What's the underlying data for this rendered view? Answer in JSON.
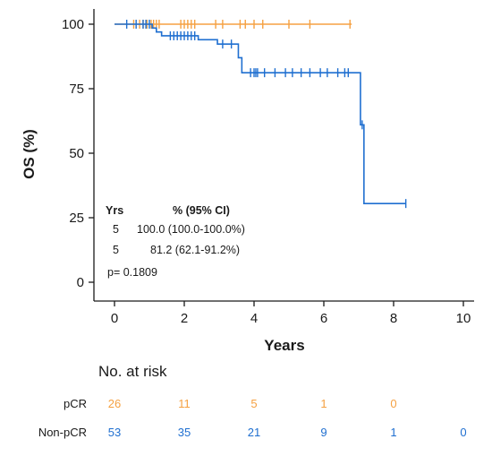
{
  "chart_data": {
    "type": "line",
    "subtype": "kaplan-meier",
    "xlabel": "Years",
    "ylabel": "OS (%)",
    "xlim": [
      0,
      10
    ],
    "ylim": [
      0,
      100
    ],
    "x_ticks": [
      "0",
      "2",
      "4",
      "6",
      "8",
      "10"
    ],
    "y_ticks": [
      "0",
      "25",
      "50",
      "75",
      "100"
    ],
    "grid": false,
    "colors": {
      "pcr": "#F5A142",
      "nonpcr": "#1F6FD0"
    },
    "series": [
      {
        "key": "pcr",
        "color": "#F5A142",
        "steps": [
          [
            0,
            100
          ],
          [
            6.8,
            100
          ]
        ],
        "censor_times": [
          0.55,
          0.72,
          0.82,
          0.93,
          1.05,
          1.12,
          1.2,
          1.28,
          1.9,
          2.0,
          2.1,
          2.2,
          2.3,
          2.9,
          3.1,
          3.6,
          3.75,
          4.0,
          4.25,
          5.0,
          5.6,
          6.75
        ]
      },
      {
        "key": "nonpcr",
        "color": "#1F6FD0",
        "steps": [
          [
            0,
            100
          ],
          [
            1.08,
            98.5
          ],
          [
            1.2,
            97
          ],
          [
            1.35,
            95.5
          ],
          [
            2.4,
            94
          ],
          [
            2.95,
            92.3
          ],
          [
            3.55,
            87
          ],
          [
            3.65,
            81.2
          ],
          [
            7.05,
            61
          ],
          [
            7.15,
            30.5
          ],
          [
            8.35,
            30.5
          ]
        ],
        "censor_times": [
          0.35,
          0.62,
          0.82,
          0.9,
          1.0,
          1.6,
          1.7,
          1.8,
          1.9,
          2.0,
          2.1,
          2.2,
          2.3,
          3.1,
          3.35,
          3.9,
          4.0,
          4.05,
          4.1,
          4.3,
          4.6,
          4.9,
          5.1,
          5.35,
          5.6,
          5.9,
          6.1,
          6.4,
          6.6,
          6.7,
          7.1,
          8.35
        ]
      }
    ]
  },
  "stats": {
    "header_yrs": "Yrs",
    "header_pct": "%  (95% CI)",
    "row1_yrs": "5",
    "row1_value": "100.0 (100.0-100.0%)",
    "row2_yrs": "5",
    "row2_value": "81.2 (62.1-91.2%)",
    "pvalue": "p= 0.1809"
  },
  "risk_table": {
    "title": "No. at risk",
    "rows": [
      {
        "label": "pCR",
        "values": [
          "26",
          "11",
          "5",
          "1",
          "0",
          ""
        ]
      },
      {
        "label": "Non-pCR",
        "values": [
          "53",
          "35",
          "21",
          "9",
          "1",
          "0"
        ]
      }
    ]
  }
}
